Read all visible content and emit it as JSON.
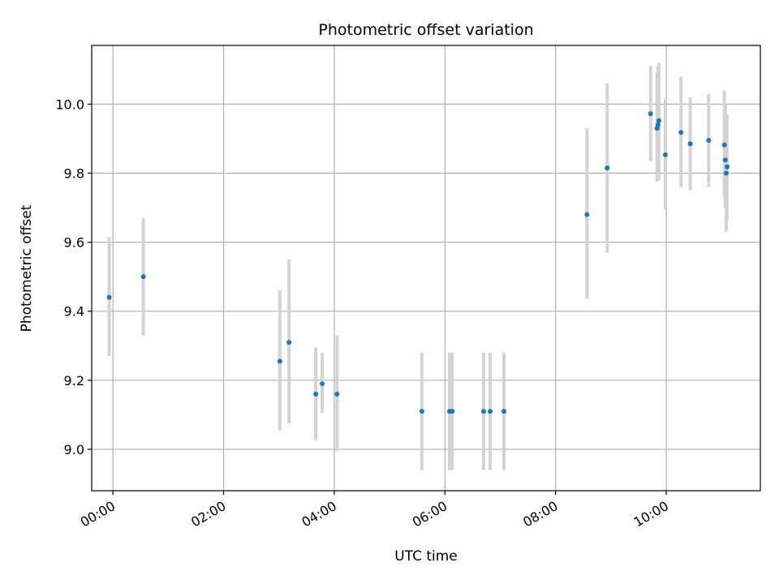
{
  "chart_data": {
    "type": "scatter",
    "title": "Photometric offset variation",
    "xlabel": "UTC time",
    "ylabel": "Photometric offset",
    "x_axis_type": "time",
    "xlim": [
      "23:37",
      "11:42"
    ],
    "ylim": [
      8.88,
      10.17
    ],
    "x_ticks": [
      "00:00",
      "02:00",
      "04:00",
      "06:00",
      "08:00",
      "10:00"
    ],
    "y_ticks": [
      "9.0",
      "9.2",
      "9.4",
      "9.6",
      "9.8",
      "10.0"
    ],
    "grid": true,
    "legend": "none",
    "colors": {
      "point": "#1f77b4",
      "errorbar": "#d3d3d3",
      "grid": "#b0b0b0"
    },
    "series": [
      {
        "x": [
          "23:56",
          "00:33",
          "03:01",
          "03:11",
          "03:40",
          "03:47",
          "04:03",
          "05:35",
          "06:05",
          "06:08",
          "06:42",
          "06:49",
          "07:04",
          "08:34",
          "08:56",
          "09:43",
          "09:50",
          "09:51",
          "09:52",
          "09:59",
          "10:16",
          "10:26",
          "10:46",
          "11:03",
          "11:04",
          "11:05",
          "11:06"
        ],
        "y": [
          9.44,
          9.5,
          9.255,
          9.31,
          9.16,
          9.19,
          9.16,
          9.11,
          9.11,
          9.11,
          9.11,
          9.11,
          9.11,
          9.68,
          9.815,
          9.972,
          9.93,
          9.94,
          9.952,
          9.853,
          9.918,
          9.885,
          9.895,
          9.882,
          9.838,
          9.8,
          9.818
        ],
        "yerr_low": [
          9.27,
          9.33,
          9.055,
          9.075,
          9.025,
          9.105,
          8.995,
          8.94,
          8.94,
          8.94,
          8.94,
          8.94,
          8.94,
          9.435,
          9.57,
          9.835,
          9.775,
          9.79,
          9.78,
          9.695,
          9.76,
          9.75,
          9.76,
          9.73,
          9.7,
          9.63,
          9.665
        ],
        "yerr_high": [
          9.615,
          9.67,
          9.46,
          9.55,
          9.295,
          9.28,
          9.33,
          9.28,
          9.28,
          9.28,
          9.28,
          9.28,
          9.28,
          9.93,
          10.06,
          10.11,
          10.09,
          10.11,
          10.12,
          10.015,
          10.08,
          10.02,
          10.03,
          10.04,
          10.0,
          9.97,
          9.97
        ]
      }
    ]
  }
}
